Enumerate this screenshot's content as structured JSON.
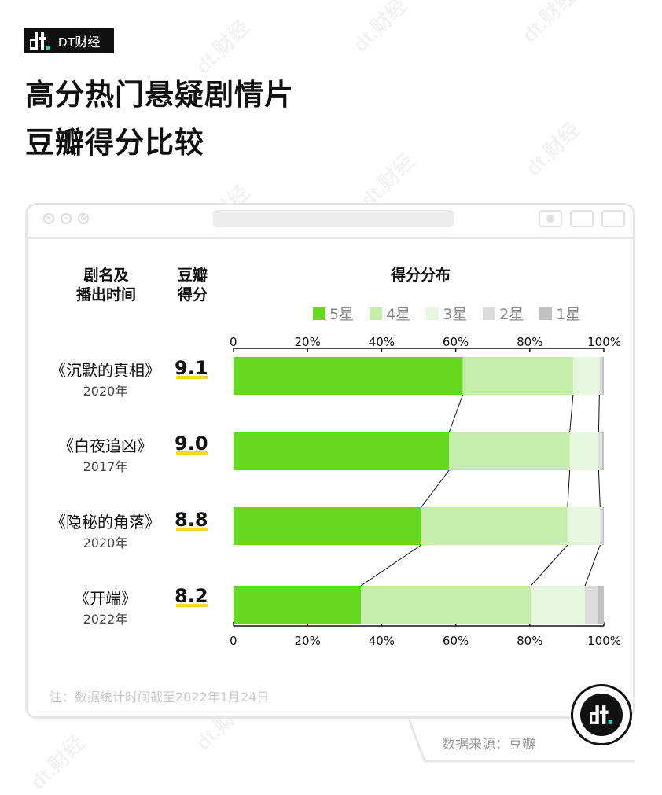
{
  "brand": {
    "name": "DT财经",
    "watermark": "dt.财经"
  },
  "title_line1": "高分热门悬疑剧情片",
  "title_line2": "豆瓣得分比较",
  "headers": {
    "name_line1": "剧名及",
    "name_line2": "播出时间",
    "score_line1": "豆瓣",
    "score_line2": "得分",
    "dist": "得分分布"
  },
  "footnote": "注：数据统计时间截至2022年1月24日",
  "source": "数据来源：豆瓣",
  "colors": {
    "5星": "#66d81f",
    "4星": "#c4eeaa",
    "3星": "#e6f7dd",
    "2星": "#dcdcdc",
    "1星": "#c0c0c0",
    "score_underline": "#ffd81a"
  },
  "chart_data": {
    "type": "bar",
    "orientation": "horizontal",
    "stacked": true,
    "normalized_percent": true,
    "xlim": [
      0,
      100
    ],
    "x_ticks": [
      "0",
      "20%",
      "40%",
      "60%",
      "80%",
      "100%"
    ],
    "legend": [
      "5星",
      "4星",
      "3星",
      "2星",
      "1星"
    ],
    "legend_position": "top-right",
    "categories": [
      "《沉默的真相》",
      "《白夜追凶》",
      "《隐秘的角落》",
      "《开端》"
    ],
    "years": [
      "2020年",
      "2017年",
      "2020年",
      "2022年"
    ],
    "scores": [
      "9.1",
      "9.0",
      "8.8",
      "8.2"
    ],
    "series": [
      {
        "name": "5星",
        "values": [
          61.9,
          58.2,
          50.7,
          34.4
        ]
      },
      {
        "name": "4星",
        "values": [
          29.8,
          32.6,
          39.5,
          45.9
        ]
      },
      {
        "name": "3星",
        "values": [
          7.1,
          7.8,
          8.8,
          14.6
        ]
      },
      {
        "name": "2星",
        "values": [
          0.8,
          1.0,
          0.7,
          3.5
        ]
      },
      {
        "name": "1星",
        "values": [
          0.4,
          0.4,
          0.3,
          1.6
        ]
      }
    ],
    "connectors": true
  }
}
